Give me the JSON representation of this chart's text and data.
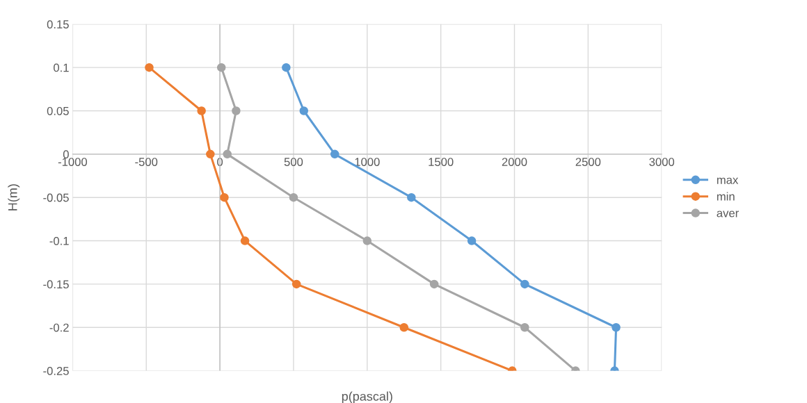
{
  "chart_data": {
    "type": "line",
    "xlabel": "p(pascal)",
    "ylabel": "H(m)",
    "xlim": [
      -1000,
      3000
    ],
    "xticks": [
      -1000,
      -500,
      0,
      500,
      1000,
      1500,
      2000,
      2500,
      3000
    ],
    "ylim": [
      -0.25,
      0.15
    ],
    "yticks": [
      -0.25,
      -0.2,
      -0.15,
      -0.1,
      -0.05,
      0,
      0.05,
      0.1,
      0.15
    ],
    "grid": true,
    "legend": "right",
    "marker": "circle",
    "line_style": "solid",
    "series": [
      {
        "name": "max",
        "color": "#5b9bd5",
        "x": [
          450,
          570,
          780,
          1300,
          1710,
          2070,
          2690,
          2680
        ],
        "values": [
          0.1,
          0.05,
          0,
          -0.05,
          -0.1,
          -0.15,
          -0.2,
          -0.25
        ]
      },
      {
        "name": "min",
        "color": "#ed7d31",
        "x": [
          -480,
          -125,
          -65,
          30,
          170,
          520,
          1250,
          1985
        ],
        "values": [
          0.1,
          0.05,
          0,
          -0.05,
          -0.1,
          -0.15,
          -0.2,
          -0.25
        ]
      },
      {
        "name": "aver",
        "color": "#a5a5a5",
        "x": [
          10,
          110,
          50,
          500,
          1000,
          1455,
          2070,
          2415
        ],
        "values": [
          0.1,
          0.05,
          0,
          -0.05,
          -0.1,
          -0.15,
          -0.2,
          -0.25
        ]
      }
    ]
  }
}
